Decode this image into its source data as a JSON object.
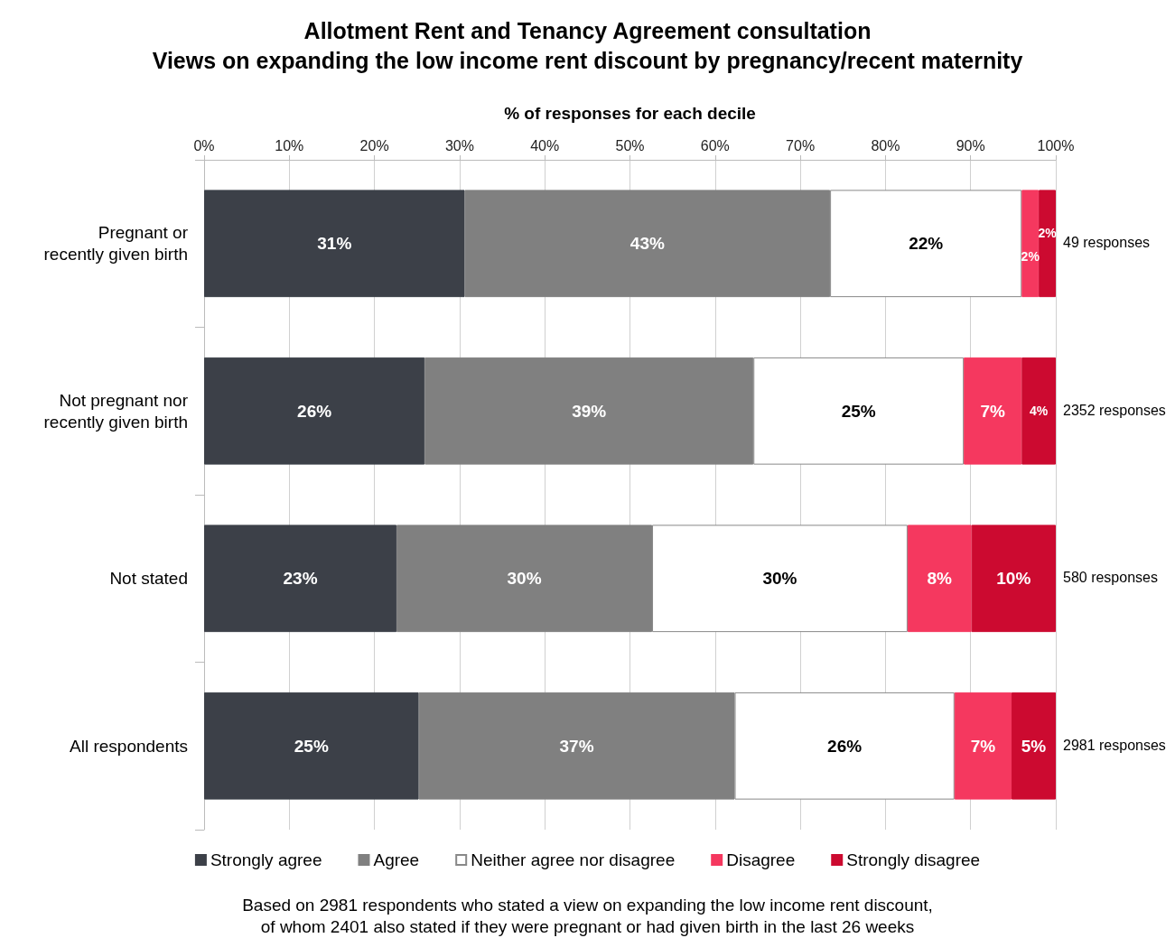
{
  "chart_data": {
    "type": "bar",
    "orientation": "horizontal",
    "stacked": true,
    "title": "Allotment Rent and Tenancy Agreement consultation",
    "subtitle": "Views on expanding the low income rent discount by pregnancy/recent maternity",
    "xlabel": "% of responses for each decile",
    "categories": [
      "Pregnant or\nrecently given birth",
      "Not pregnant nor\nrecently given birth",
      "Not stated",
      "All respondents"
    ],
    "series": [
      {
        "name": "Strongly agree",
        "color": "#3c4048",
        "values": [
          30.6,
          25.9,
          22.6,
          25.2
        ],
        "value_labels": [
          "31%",
          "26%",
          "23%",
          "25%"
        ]
      },
      {
        "name": "Agree",
        "color": "#808080",
        "values": [
          42.9,
          38.6,
          30.0,
          37.1
        ],
        "value_labels": [
          "43%",
          "39%",
          "30%",
          "37%"
        ]
      },
      {
        "name": "Neither agree nor disagree",
        "color": "#ffffff",
        "values": [
          22.5,
          24.7,
          30.0,
          25.8
        ],
        "value_labels": [
          "22%",
          "25%",
          "30%",
          "26%"
        ]
      },
      {
        "name": "Disagree",
        "color": "#f5385f",
        "values": [
          2.0,
          6.8,
          7.5,
          6.7
        ],
        "value_labels": [
          "2%",
          "7%",
          "8%",
          "7%"
        ]
      },
      {
        "name": "Strongly disagree",
        "color": "#cc0a30",
        "values": [
          2.0,
          4.0,
          9.9,
          5.2
        ],
        "value_labels": [
          "2%",
          "4%",
          "10%",
          "5%"
        ]
      }
    ],
    "xlim": [
      0,
      100
    ],
    "xticks": [
      {
        "value": 0,
        "label": "0%"
      },
      {
        "value": 10,
        "label": "10%"
      },
      {
        "value": 20,
        "label": "20%"
      },
      {
        "value": 30,
        "label": "30%"
      },
      {
        "value": 40,
        "label": "40%"
      },
      {
        "value": 50,
        "label": "50%"
      },
      {
        "value": 60,
        "label": "60%"
      },
      {
        "value": 70,
        "label": "70%"
      },
      {
        "value": 80,
        "label": "80%"
      },
      {
        "value": 90,
        "label": "90%"
      },
      {
        "value": 100,
        "label": "100%"
      }
    ],
    "grid": "x",
    "legend": "bottom",
    "annotations": [
      "49 responses",
      "2352 responses",
      "580 responses",
      "2981 responses",
      "Based on 2981 respondents who stated a view on expanding the low income rent discount,\nof whom 2401 also stated if they were pregnant or had given birth in the last 26 weeks"
    ]
  }
}
